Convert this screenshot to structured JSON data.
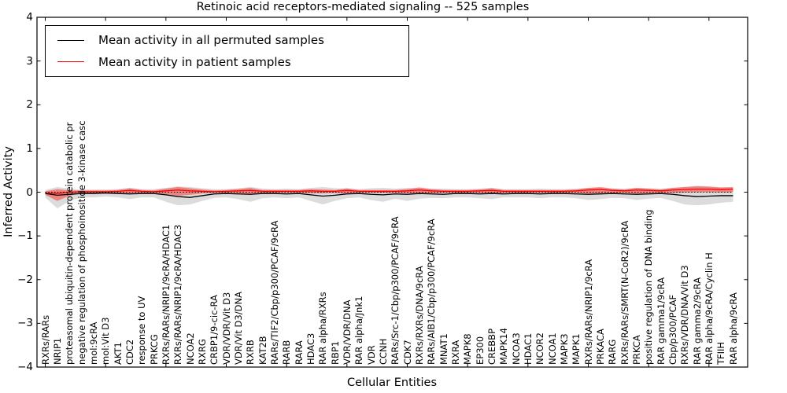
{
  "title": "Retinoic acid receptors-mediated signaling -- 525 samples",
  "axes": {
    "ylabel": "Inferred Activity",
    "xlabel": "Cellular Entities",
    "yticks": [
      "4",
      "3",
      "2",
      "1",
      "0",
      "−1",
      "−2",
      "−3",
      "−4"
    ]
  },
  "legend": {
    "items": [
      {
        "label": "Mean activity in all permuted samples",
        "color": "#000000"
      },
      {
        "label": "Mean activity in patient samples",
        "color": "#ff0000"
      }
    ]
  },
  "chart_data": {
    "type": "line",
    "title": "Retinoic acid receptors-mediated signaling -- 525 samples",
    "xlabel": "Cellular Entities",
    "ylabel": "Inferred Activity",
    "ylim": [
      -4,
      4
    ],
    "grid": false,
    "legend_position": "upper left",
    "baseline": 0,
    "categories": [
      "RXRs/RARs",
      "NRIP1",
      "proteasomal ubiquitin-dependent protein catabolic pr",
      "negative regulation of phosphoinositide 3-kinase casc",
      "mol:9cRA",
      "mol:Vit D3",
      "AKT1",
      "CDC2",
      "response to UV",
      "PRKCG",
      "RXRs/RARs/NRIP1/9cRA/HDAC1",
      "RXRs/RARs/NRIP1/9cRA/HDAC3",
      "NCOA2",
      "RXRG",
      "CRBP1/9-cic-RA",
      "VDR/VDR/Vit D3",
      "VDR/Vit D3/DNA",
      "RXRB",
      "KAT2B",
      "RARs/TIF2/Cbp/p300/PCAF/9cRA",
      "RARB",
      "RARA",
      "HDAC3",
      "RAR alpha/RXRs",
      "RBP1",
      "VDR/VDR/DNA",
      "RAR alpha/Jnk1",
      "VDR",
      "CCNH",
      "RARs/Src-1/Cbp/p300/PCAF/9cRA",
      "CDK7",
      "RXRs/RXRs/DNA/9cRA",
      "RARs/AIB1/Cbp/p300/PCAF/9cRA",
      "MNAT1",
      "RXRA",
      "MAPK8",
      "EP300",
      "CREBBP",
      "MAPK14",
      "NCOA3",
      "HDAC1",
      "NCOR2",
      "NCOA1",
      "MAPK3",
      "MAPK1",
      "RXRs/RARs/NRIP1/9cRA",
      "PRKACA",
      "RARG",
      "RXRs/RARs/SMRT(N-CoR2)/9cRA",
      "PRKCA",
      "positive regulation of DNA binding",
      "RAR gamma1/9cRA",
      "Cbp/p300/PCAF",
      "RXRs/VDR/DNA/Vit D3",
      "RAR gamma2/9cRA",
      "RAR alpha/9cRA/Cyclin H",
      "TFIIH",
      "RAR alpha/9cRA"
    ],
    "series": [
      {
        "name": "Mean activity in all permuted samples",
        "color": "#000000",
        "values": [
          -0.03,
          -0.07,
          -0.05,
          -0.03,
          -0.03,
          -0.02,
          -0.03,
          -0.04,
          -0.03,
          -0.03,
          -0.06,
          -0.1,
          -0.12,
          -0.08,
          -0.04,
          -0.03,
          -0.04,
          -0.05,
          -0.03,
          -0.03,
          -0.04,
          -0.03,
          -0.06,
          -0.09,
          -0.07,
          -0.04,
          -0.03,
          -0.05,
          -0.06,
          -0.04,
          -0.05,
          -0.03,
          -0.04,
          -0.05,
          -0.03,
          -0.03,
          -0.04,
          -0.03,
          -0.04,
          -0.03,
          -0.03,
          -0.04,
          -0.03,
          -0.03,
          -0.04,
          -0.05,
          -0.04,
          -0.03,
          -0.04,
          -0.05,
          -0.04,
          -0.03,
          -0.05,
          -0.08,
          -0.1,
          -0.09,
          -0.08,
          -0.08
        ]
      },
      {
        "name": "Mean activity in patient samples",
        "color": "#ff0000",
        "values": [
          -0.02,
          -0.03,
          0.0,
          0.01,
          0.01,
          0.01,
          0.02,
          0.04,
          0.02,
          0.01,
          0.03,
          0.05,
          0.03,
          0.02,
          0.01,
          0.02,
          0.03,
          0.04,
          0.02,
          0.02,
          0.02,
          0.02,
          0.03,
          0.02,
          0.02,
          0.04,
          0.02,
          0.02,
          0.02,
          0.02,
          0.03,
          0.05,
          0.03,
          0.02,
          0.02,
          0.02,
          0.03,
          0.04,
          0.02,
          0.02,
          0.02,
          0.02,
          0.02,
          0.02,
          0.03,
          0.05,
          0.06,
          0.04,
          0.03,
          0.05,
          0.04,
          0.03,
          0.05,
          0.06,
          0.07,
          0.07,
          0.06,
          0.07
        ]
      }
    ],
    "bands": [
      {
        "name": "permuted samples range",
        "fill": "#dcdcdc",
        "opacity": 1,
        "upper": [
          0.05,
          0.12,
          0.08,
          0.06,
          0.06,
          0.06,
          0.07,
          0.1,
          0.07,
          0.07,
          0.1,
          0.13,
          0.12,
          0.09,
          0.07,
          0.07,
          0.09,
          0.12,
          0.08,
          0.07,
          0.08,
          0.07,
          0.1,
          0.12,
          0.09,
          0.08,
          0.07,
          0.09,
          0.1,
          0.08,
          0.1,
          0.09,
          0.08,
          0.08,
          0.07,
          0.07,
          0.08,
          0.1,
          0.07,
          0.07,
          0.07,
          0.08,
          0.07,
          0.07,
          0.08,
          0.1,
          0.1,
          0.08,
          0.08,
          0.1,
          0.09,
          0.08,
          0.1,
          0.12,
          0.13,
          0.12,
          0.1,
          0.1
        ],
        "lower": [
          -0.12,
          -0.37,
          -0.2,
          -0.12,
          -0.12,
          -0.1,
          -0.12,
          -0.16,
          -0.12,
          -0.12,
          -0.22,
          -0.3,
          -0.28,
          -0.2,
          -0.13,
          -0.12,
          -0.16,
          -0.22,
          -0.14,
          -0.12,
          -0.14,
          -0.12,
          -0.2,
          -0.28,
          -0.2,
          -0.14,
          -0.12,
          -0.18,
          -0.22,
          -0.15,
          -0.2,
          -0.15,
          -0.13,
          -0.14,
          -0.12,
          -0.12,
          -0.14,
          -0.16,
          -0.12,
          -0.12,
          -0.12,
          -0.14,
          -0.12,
          -0.12,
          -0.14,
          -0.18,
          -0.16,
          -0.13,
          -0.14,
          -0.18,
          -0.15,
          -0.13,
          -0.2,
          -0.28,
          -0.3,
          -0.28,
          -0.24,
          -0.22
        ]
      },
      {
        "name": "patient samples range",
        "fill": "#fa2d28",
        "opacity": 0.5,
        "upper": [
          0.02,
          0.07,
          0.04,
          0.04,
          0.04,
          0.04,
          0.05,
          0.09,
          0.05,
          0.04,
          0.08,
          0.12,
          0.09,
          0.06,
          0.04,
          0.05,
          0.07,
          0.1,
          0.05,
          0.05,
          0.05,
          0.05,
          0.07,
          0.06,
          0.05,
          0.09,
          0.05,
          0.05,
          0.05,
          0.05,
          0.07,
          0.11,
          0.07,
          0.05,
          0.05,
          0.05,
          0.06,
          0.09,
          0.05,
          0.05,
          0.05,
          0.05,
          0.05,
          0.05,
          0.06,
          0.1,
          0.12,
          0.08,
          0.06,
          0.1,
          0.08,
          0.06,
          0.1,
          0.12,
          0.14,
          0.13,
          0.11,
          0.12
        ],
        "lower": [
          -0.06,
          -0.2,
          -0.08,
          -0.03,
          -0.03,
          -0.02,
          -0.02,
          -0.04,
          -0.02,
          -0.02,
          -0.05,
          -0.08,
          -0.06,
          -0.03,
          -0.02,
          -0.02,
          -0.03,
          -0.05,
          -0.02,
          -0.02,
          -0.02,
          -0.02,
          -0.03,
          -0.03,
          -0.02,
          -0.04,
          -0.02,
          -0.02,
          -0.02,
          -0.02,
          -0.03,
          -0.05,
          -0.03,
          -0.02,
          -0.02,
          -0.02,
          -0.02,
          -0.04,
          -0.02,
          -0.02,
          -0.02,
          -0.02,
          -0.02,
          -0.02,
          -0.02,
          -0.04,
          -0.05,
          -0.03,
          -0.02,
          -0.04,
          -0.03,
          -0.02,
          -0.02,
          -0.01,
          0.0,
          0.0,
          -0.01,
          0.0
        ]
      }
    ]
  }
}
